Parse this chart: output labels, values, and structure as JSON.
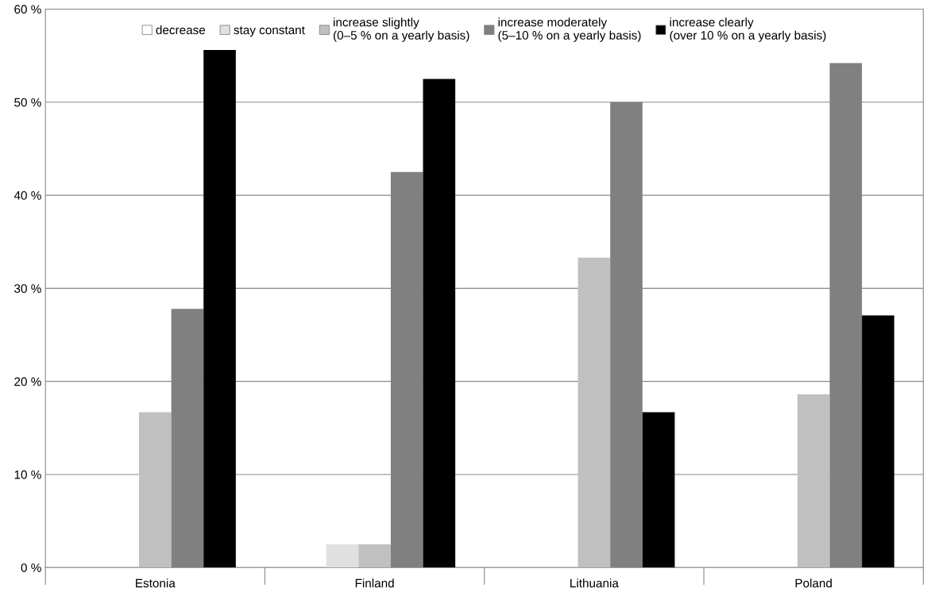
{
  "chart_data": {
    "type": "bar",
    "categories": [
      "Estonia",
      "Finland",
      "Lithuania",
      "Poland"
    ],
    "series": [
      {
        "name": "decrease",
        "color": "#ffffff",
        "values": [
          0,
          0,
          0,
          0
        ]
      },
      {
        "name": "stay constant",
        "color": "#e0e0e0",
        "values": [
          0,
          2.5,
          0,
          0
        ]
      },
      {
        "name": "increase slightly\n(0–5 % on a yearly basis)",
        "color": "#c0c0c0",
        "values": [
          16.7,
          2.5,
          33.3,
          18.6
        ]
      },
      {
        "name": "increase moderately\n(5–10 % on a yearly basis)",
        "color": "#808080",
        "values": [
          27.8,
          42.5,
          50.0,
          54.2
        ]
      },
      {
        "name": "increase clearly\n(over 10 % on a yearly basis)",
        "color": "#000000",
        "values": [
          55.6,
          52.5,
          16.7,
          27.1
        ]
      }
    ],
    "ylim": [
      0,
      60
    ],
    "yticks": [
      {
        "value": 0,
        "label": "0 %"
      },
      {
        "value": 10,
        "label": "10 %"
      },
      {
        "value": 20,
        "label": "20 %"
      },
      {
        "value": 30,
        "label": "30 %"
      },
      {
        "value": 40,
        "label": "40 %"
      },
      {
        "value": 50,
        "label": "50 %"
      },
      {
        "value": 60,
        "label": "60 %"
      }
    ],
    "grid": "y",
    "legend": "top"
  }
}
